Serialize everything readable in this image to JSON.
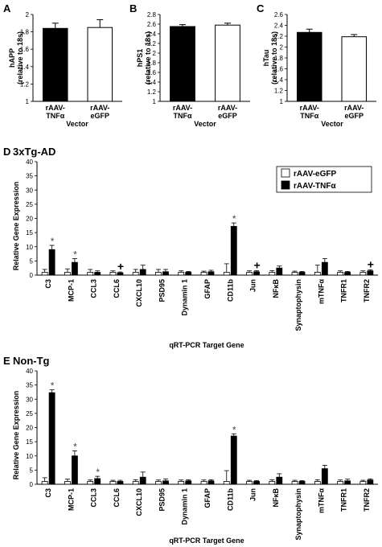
{
  "chart_data": [
    {
      "id": "A",
      "type": "bar",
      "panel_label": "A",
      "ylabel_line1": "hAPP",
      "ylabel_line2": "(relative to 18s)",
      "xlabel": "Vector",
      "ylim": [
        1,
        2
      ],
      "yticks": [
        "1",
        "1.2",
        "1.4",
        "1.6",
        "1.8",
        "2"
      ],
      "categories": [
        {
          "line1": "rAAV-",
          "line2": "TNFα"
        },
        {
          "line1": "rAAV-",
          "line2": "eGFP"
        }
      ],
      "values": [
        1.84,
        1.85
      ],
      "errors": [
        0.06,
        0.09
      ],
      "fills": [
        "#000000",
        "#ffffff"
      ]
    },
    {
      "id": "B",
      "type": "bar",
      "panel_label": "B",
      "ylabel_line1": "hPS1",
      "ylabel_line2": "(relative to 18s)",
      "xlabel": "Vector",
      "ylim": [
        1,
        2.8
      ],
      "yticks": [
        "1",
        "1.2",
        "1.4",
        "1.6",
        "1.8",
        "2",
        "2.2",
        "2.4",
        "2.6",
        "2.8"
      ],
      "categories": [
        {
          "line1": "rAAV-",
          "line2": "TNFα"
        },
        {
          "line1": "rAAV-",
          "line2": "eGFP"
        }
      ],
      "values": [
        2.55,
        2.58
      ],
      "errors": [
        0.04,
        0.04
      ],
      "fills": [
        "#000000",
        "#ffffff"
      ]
    },
    {
      "id": "C",
      "type": "bar",
      "panel_label": "C",
      "ylabel_line1": "hTau",
      "ylabel_line2": "(relative to 18s)",
      "xlabel": "Vector",
      "ylim": [
        1,
        2.6
      ],
      "yticks": [
        "1",
        "1.2",
        "1.4",
        "1.6",
        "1.8",
        "2",
        "2.2",
        "2.4",
        "2.6"
      ],
      "categories": [
        {
          "line1": "rAAV-",
          "line2": "TNFα"
        },
        {
          "line1": "rAAV-",
          "line2": "eGFP"
        }
      ],
      "values": [
        2.27,
        2.19
      ],
      "errors": [
        0.06,
        0.04
      ],
      "fills": [
        "#000000",
        "#ffffff"
      ]
    },
    {
      "id": "D",
      "type": "bar",
      "panel_label": "D",
      "title": "3xTg-AD",
      "ylabel": "Relative Gene Expression",
      "xlabel": "qRT-PCR Target Gene",
      "ylim": [
        0,
        40
      ],
      "yticks": [
        "0",
        "5",
        "10",
        "15",
        "20",
        "25",
        "30",
        "35",
        "40"
      ],
      "categories": [
        "C3",
        "MCP-1",
        "CCL3",
        "CCL6",
        "CXCL10",
        "PSD95",
        "Dynamin 1",
        "GFAP",
        "CD11b",
        "Jun",
        "NFκB",
        "Synaptophysin",
        "mTNFα",
        "TNFR1",
        "TNFR2"
      ],
      "series": [
        {
          "name": "rAAV-eGFP",
          "fill": "#ffffff",
          "values": [
            1,
            1,
            1,
            1,
            1,
            1,
            1,
            1,
            1,
            1,
            1,
            1,
            1,
            1,
            1
          ],
          "errors": [
            1.0,
            1.2,
            1.0,
            0.5,
            1.0,
            1.0,
            0.5,
            0.4,
            3.0,
            0.5,
            0.6,
            0.4,
            2.5,
            0.5,
            0.5
          ]
        },
        {
          "name": "rAAV-TNFα",
          "fill": "#000000",
          "values": [
            9,
            4.5,
            1,
            0.8,
            2,
            1.2,
            1,
            1.2,
            17.2,
            1.2,
            2.5,
            1,
            4.5,
            1,
            1.5
          ],
          "errors": [
            1.5,
            1.3,
            0.5,
            0.3,
            1.5,
            0.8,
            0.3,
            0.5,
            1.2,
            0.4,
            0.7,
            0.3,
            1.3,
            0.3,
            0.4
          ]
        }
      ],
      "annotations": [
        {
          "category": "C3",
          "symbol": "*"
        },
        {
          "category": "MCP-1",
          "symbol": "*"
        },
        {
          "category": "CCL6",
          "symbol": "+"
        },
        {
          "category": "CD11b",
          "symbol": "*"
        },
        {
          "category": "Jun",
          "symbol": "+"
        },
        {
          "category": "TNFR2",
          "symbol": "+"
        }
      ],
      "legend_position": "top-right"
    },
    {
      "id": "E",
      "type": "bar",
      "panel_label": "E",
      "title": "Non-Tg",
      "ylabel": "Relative Gene Expression",
      "xlabel": "qRT-PCR Target Gene",
      "ylim": [
        0,
        40
      ],
      "yticks": [
        "0",
        "5",
        "10",
        "15",
        "20",
        "25",
        "30",
        "35",
        "40"
      ],
      "categories": [
        "C3",
        "MCP-1",
        "CCL3",
        "CCL6",
        "CXCL10",
        "PSD95",
        "Dynamin 1",
        "GFAP",
        "CD11b",
        "Jun",
        "NFκB",
        "Synaptophysin",
        "mTNFα",
        "TNFR1",
        "TNFR2"
      ],
      "series": [
        {
          "name": "rAAV-eGFP",
          "fill": "#ffffff",
          "values": [
            1,
            1,
            1,
            1,
            1,
            1,
            1,
            1,
            1,
            1,
            1,
            1,
            1,
            1,
            1
          ],
          "errors": [
            1.3,
            0.8,
            0.5,
            0.4,
            0.6,
            0.5,
            0.5,
            0.5,
            3.8,
            0.4,
            0.6,
            0.4,
            0.6,
            0.5,
            0.4
          ]
        },
        {
          "name": "rAAV-TNFα",
          "fill": "#000000",
          "values": [
            32.3,
            10,
            2,
            1,
            2.5,
            1.2,
            1.2,
            1.2,
            17,
            1,
            2.5,
            1,
            5.5,
            1.2,
            1.5
          ],
          "errors": [
            1.0,
            1.8,
            0.8,
            0.4,
            1.8,
            0.7,
            0.4,
            0.4,
            0.8,
            0.3,
            1.2,
            0.3,
            1.2,
            0.6,
            0.4
          ]
        }
      ],
      "annotations": [
        {
          "category": "C3",
          "symbol": "*"
        },
        {
          "category": "MCP-1",
          "symbol": "*"
        },
        {
          "category": "CCL3",
          "symbol": "*"
        },
        {
          "category": "CD11b",
          "symbol": "*"
        }
      ]
    }
  ]
}
